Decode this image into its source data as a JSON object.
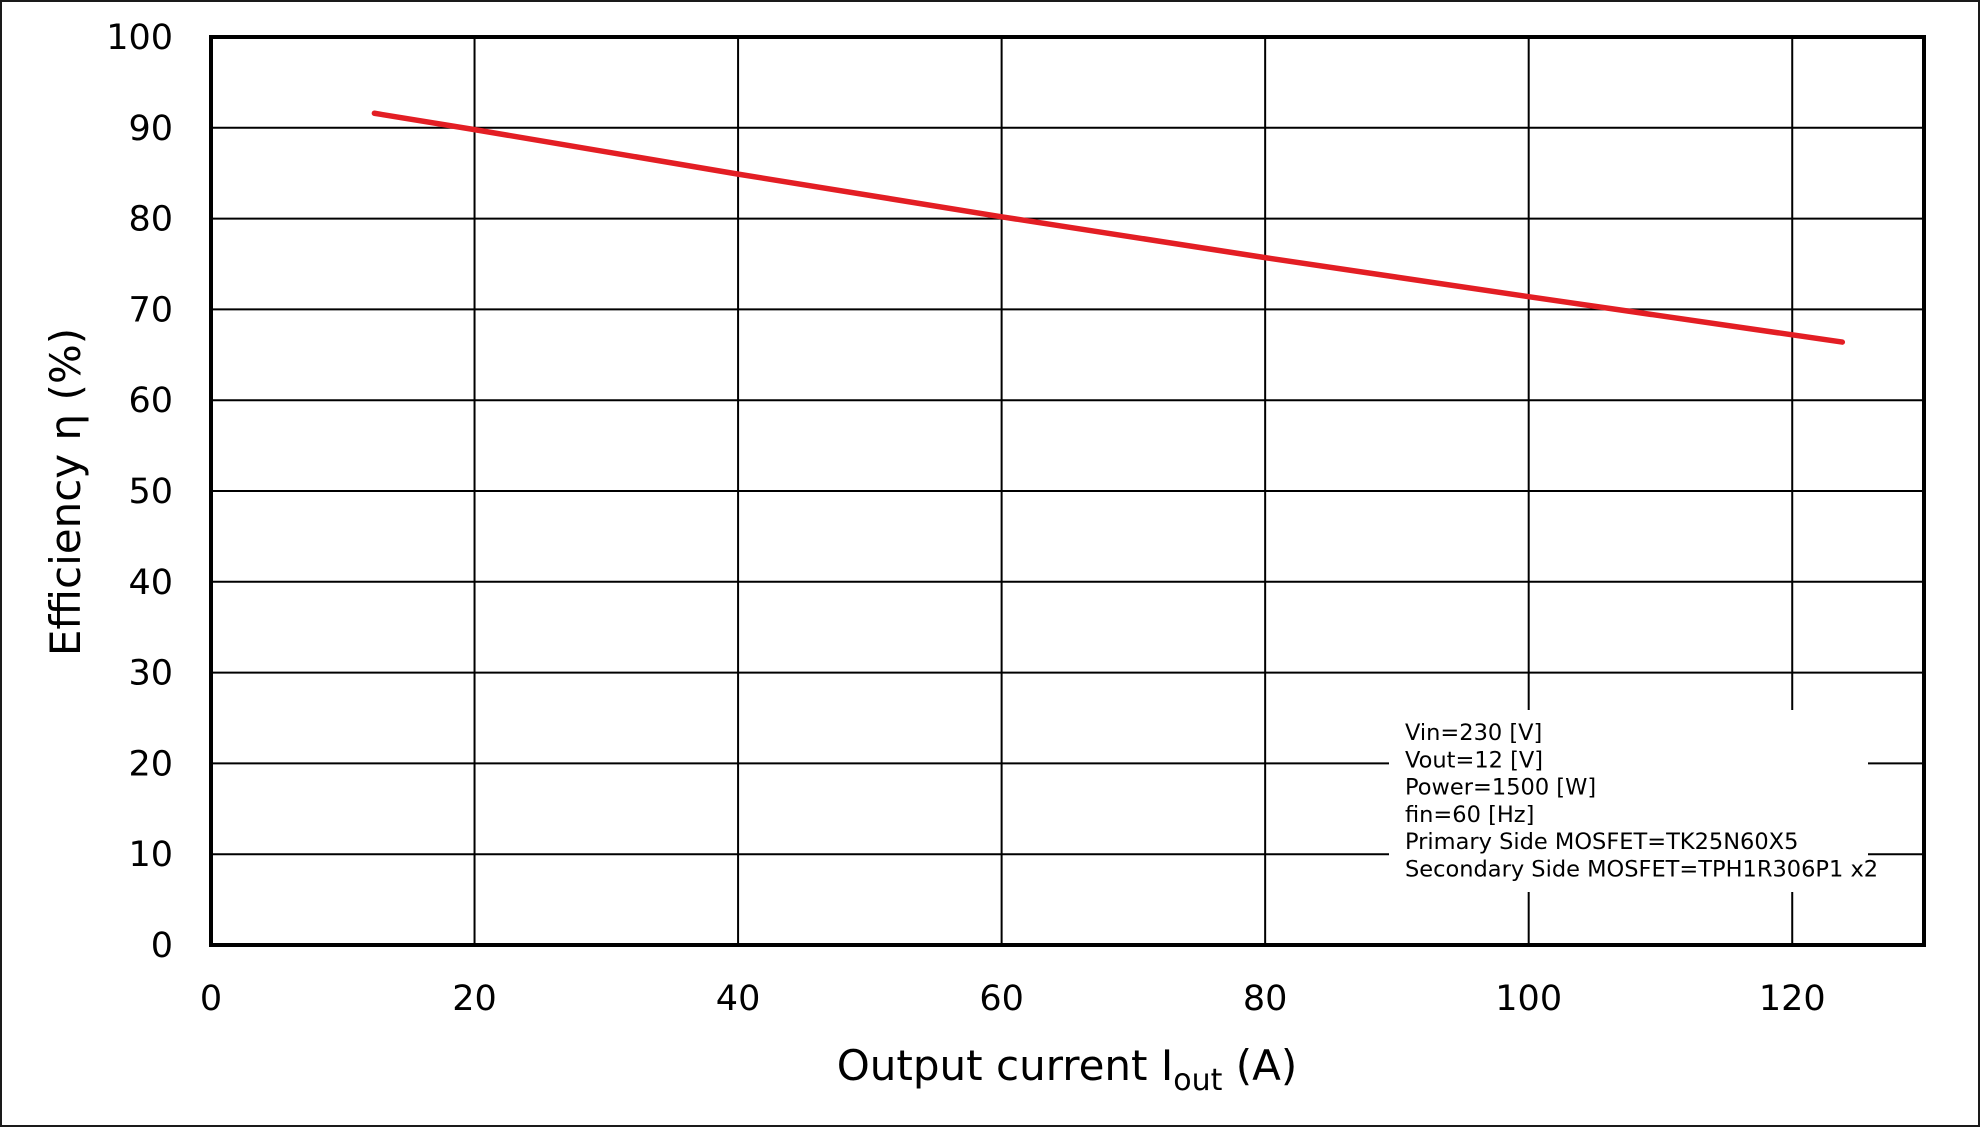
{
  "chart_data": {
    "type": "line",
    "title": "",
    "xlabel": "Output current  I",
    "xlabel_subscript": "out",
    "xlabel_unit": " (A)",
    "ylabel": "Efficiency  η (%)",
    "xlim": [
      0,
      130
    ],
    "ylim": [
      0,
      100
    ],
    "x_ticks": [
      0,
      20,
      40,
      60,
      80,
      100,
      120
    ],
    "y_ticks": [
      0,
      10,
      20,
      30,
      40,
      50,
      60,
      70,
      80,
      90,
      100
    ],
    "grid": true,
    "legend": "none",
    "series": [
      {
        "name": "Efficiency",
        "color": "#E31E24",
        "x": [
          12.4,
          20,
          40,
          60,
          80,
          100,
          123.8
        ],
        "y": [
          91.6,
          89.8,
          84.9,
          80.2,
          75.7,
          71.4,
          66.4
        ]
      }
    ],
    "annotations": [
      "Vin=230 [V]",
      "Vout=12 [V]",
      "Power=1500 [W]",
      "fin=60 [Hz]",
      "Primary Side MOSFET=TK25N60X5",
      "Secondary Side MOSFET=TPH1R306P1 x2"
    ]
  }
}
